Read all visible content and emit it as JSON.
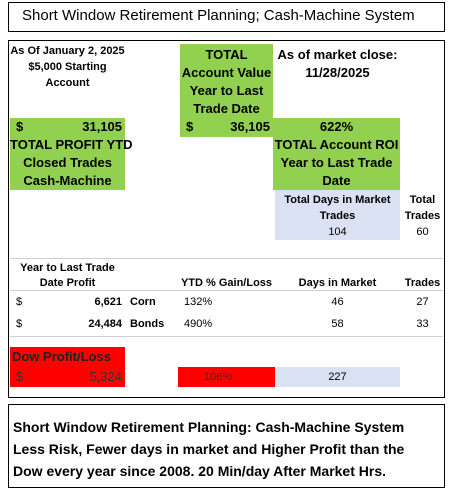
{
  "title": "Short Window Retirement Planning; Cash-Machine System",
  "start_info": [
    "As Of January 2, 2025",
    "$5,000 Starting",
    "Account"
  ],
  "total_value_label": [
    "TOTAL",
    "Account Value",
    "Year to Last",
    "Trade Date"
  ],
  "market_close": [
    "As of market close:",
    "11/28/2025"
  ],
  "total_profit": {
    "currency": "$",
    "amount": "31,105"
  },
  "total_value": {
    "currency": "$",
    "amount": "36,105"
  },
  "total_roi": "622%",
  "total_profit_label": [
    "TOTAL PROFIT YTD",
    "Closed Trades",
    "Cash-Machine"
  ],
  "total_roi_label": [
    "TOTAL Account ROI",
    "Year to Last Trade",
    "Date"
  ],
  "days_label": [
    "Total Days in Market",
    "Trades"
  ],
  "days_value": "104",
  "trades_label": [
    "Total",
    "Trades"
  ],
  "trades_value": "60",
  "table": {
    "headers": [
      [
        "Year to Last Trade",
        "Date Profit"
      ],
      "YTD % Gain/Loss",
      "Days in Market",
      "Trades"
    ],
    "rows": [
      {
        "currency": "$",
        "profit": "6,621",
        "asset": "Corn",
        "gain": "132%",
        "days": "46",
        "trades": "27"
      },
      {
        "currency": "$",
        "profit": "24,484",
        "asset": "Bonds",
        "gain": "490%",
        "days": "58",
        "trades": "33"
      }
    ]
  },
  "dow": {
    "label": "Dow Profit/Loss",
    "currency": "$",
    "profit": "5,324",
    "gain": "106%",
    "days": "227"
  },
  "footer": [
    "Short Window Retirement Planning: Cash-Machine System",
    "Less Risk,  Fewer days in market and Higher Profit than the",
    "Dow every year since 2008.   20 Min/day After Market Hrs."
  ]
}
